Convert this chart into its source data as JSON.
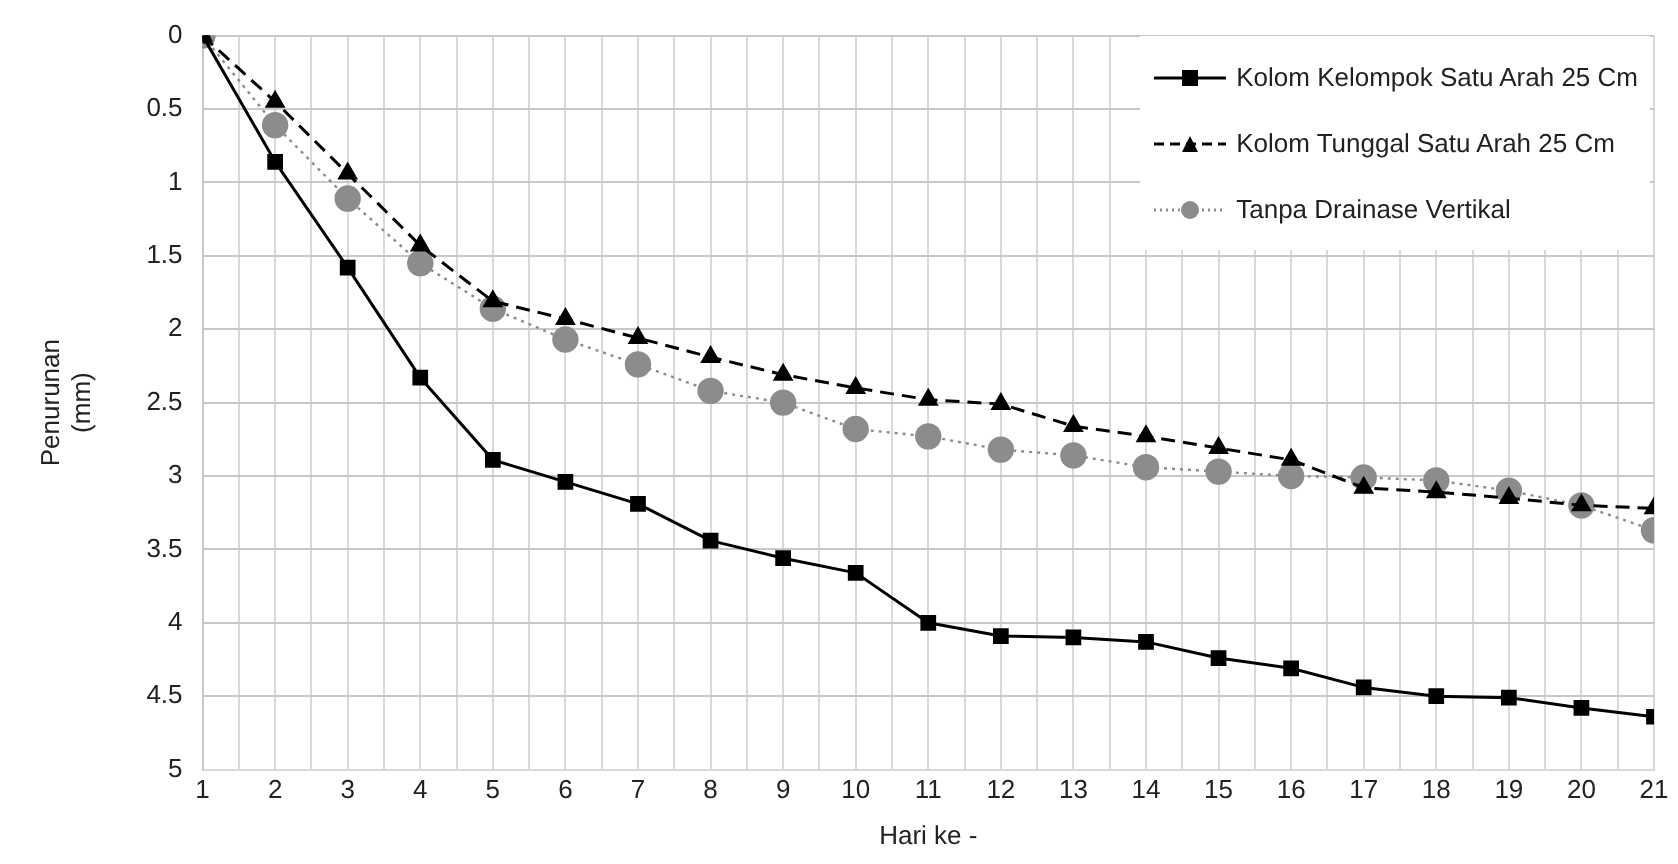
{
  "chart_data": {
    "type": "line",
    "xlabel": "Hari ke -",
    "ylabel": "Penurunan (mm)",
    "x": [
      1,
      2,
      3,
      4,
      5,
      6,
      7,
      8,
      9,
      10,
      11,
      12,
      13,
      14,
      15,
      16,
      17,
      18,
      19,
      20,
      21
    ],
    "xlim": [
      1,
      21
    ],
    "xticks": [
      1,
      {
        "value": 1.5,
        "label": null
      },
      2,
      {
        "value": 2.5,
        "label": null
      },
      3,
      {
        "value": 3.5,
        "label": null
      },
      4,
      {
        "value": 4.5,
        "label": null
      },
      5,
      {
        "value": 5.5,
        "label": null
      },
      6,
      {
        "value": 6.5,
        "label": null
      },
      7,
      {
        "value": 7.5,
        "label": null
      },
      8,
      {
        "value": 8.5,
        "label": null
      },
      9,
      {
        "value": 9.5,
        "label": null
      },
      10,
      {
        "value": 10.5,
        "label": null
      },
      11,
      {
        "value": 11.5,
        "label": null
      },
      12,
      {
        "value": 12.5,
        "label": null
      },
      13,
      {
        "value": 13.5,
        "label": null
      },
      14,
      {
        "value": 14.5,
        "label": null
      },
      15,
      {
        "value": 15.5,
        "label": null
      },
      16,
      {
        "value": 16.5,
        "label": null
      },
      17,
      {
        "value": 17.5,
        "label": null
      },
      18,
      {
        "value": 18.5,
        "label": null
      },
      19,
      {
        "value": 19.5,
        "label": null
      },
      20,
      {
        "value": 20.5,
        "label": null
      },
      21
    ],
    "ylim": [
      5,
      0
    ],
    "yticks": [
      0,
      0.5,
      1,
      1.5,
      2,
      2.5,
      3,
      3.5,
      4,
      4.5,
      5
    ],
    "grid": true,
    "legend": "top right",
    "series": [
      {
        "name": "Kolom Kelompok Satu Arah 25 Cm",
        "color": "#000000",
        "marker": "square",
        "line_style": "solid",
        "values": [
          0,
          0.86,
          1.58,
          2.33,
          2.89,
          3.04,
          3.19,
          3.44,
          3.56,
          3.66,
          4.0,
          4.09,
          4.1,
          4.13,
          4.24,
          4.31,
          4.44,
          4.5,
          4.51,
          4.58,
          4.64
        ]
      },
      {
        "name": "Kolom Tunggal Satu Arah 25 Cm",
        "color": "#000000",
        "marker": "triangle",
        "line_style": "dashed",
        "values": [
          0,
          0.45,
          0.94,
          1.43,
          1.81,
          1.93,
          2.06,
          2.19,
          2.31,
          2.4,
          2.48,
          2.51,
          2.66,
          2.73,
          2.81,
          2.89,
          3.08,
          3.11,
          3.15,
          3.2,
          3.22
        ]
      },
      {
        "name": "Tanpa Drainase Vertikal",
        "color": "#8c8c8c",
        "marker": "circle",
        "line_style": "dotted",
        "values": [
          0,
          0.61,
          1.11,
          1.55,
          1.86,
          2.07,
          2.24,
          2.42,
          2.5,
          2.68,
          2.73,
          2.82,
          2.86,
          2.94,
          2.97,
          3.0,
          3.01,
          3.03,
          3.1,
          3.2,
          3.37
        ]
      }
    ]
  }
}
